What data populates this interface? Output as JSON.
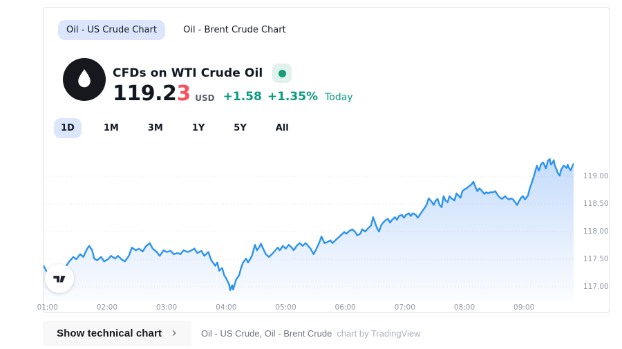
{
  "tabs": [
    {
      "label": "Oil - US Crude Chart",
      "active": true
    },
    {
      "label": "Oil - Brent Crude Chart",
      "active": false
    }
  ],
  "header": {
    "title": "CFDs on WTI Crude Oil",
    "market_status": "open",
    "price_main": "119.2",
    "price_last_digit": "3",
    "currency": "USD",
    "change_abs": "+1.58",
    "change_pct": "+1.35%",
    "change_period": "Today"
  },
  "ranges": [
    {
      "label": "1D",
      "active": true
    },
    {
      "label": "1M",
      "active": false
    },
    {
      "label": "3M",
      "active": false
    },
    {
      "label": "1Y",
      "active": false
    },
    {
      "label": "5Y",
      "active": false
    },
    {
      "label": "All",
      "active": false
    }
  ],
  "footer": {
    "button_label": "Show technical chart",
    "chevron": "›",
    "symbols_text": "Oil - US Crude, Oil - Brent Crude",
    "attribution": "chart by TradingView"
  },
  "colors": {
    "line": "#2b92ee",
    "fill_top": "rgba(45,127,240,0.30)",
    "fill_bottom": "rgba(45,127,240,0.02)",
    "grid": "#e4e6ee",
    "axis_text": "#9598a3",
    "up_green": "#089981",
    "last_digit_red": "#f7525f",
    "active_pill": "#dbe6fc",
    "card_border": "#e0e3eb",
    "status_dot": "#149d77",
    "status_badge_bg": "#e1f2ec",
    "dark_text": "#131722"
  },
  "chart_data": {
    "type": "area",
    "title": "CFDs on WTI Crude Oil",
    "xlabel": "",
    "ylabel": "",
    "x_unit": "minutes_since_midnight",
    "grid": "horizontal-dotted",
    "legend_position": "none",
    "x_range": [
      56,
      590
    ],
    "y_range": [
      116.75,
      119.5625
    ],
    "x_ticks": [
      {
        "t": 60,
        "label": "01:00"
      },
      {
        "t": 120,
        "label": "02:00"
      },
      {
        "t": 180,
        "label": "03:00"
      },
      {
        "t": 240,
        "label": "04:00"
      },
      {
        "t": 300,
        "label": "05:00"
      },
      {
        "t": 360,
        "label": "06:00"
      },
      {
        "t": 420,
        "label": "07:00"
      },
      {
        "t": 480,
        "label": "08:00"
      },
      {
        "t": 540,
        "label": "09:00"
      }
    ],
    "y_ticks": [
      {
        "p": 119.0,
        "label": "119.00"
      },
      {
        "p": 118.5,
        "label": "118.50"
      },
      {
        "p": 118.0,
        "label": "118.00"
      },
      {
        "p": 117.5,
        "label": "117.50"
      },
      {
        "p": 117.0,
        "label": "117.00"
      }
    ],
    "points": [
      [
        56,
        117.38
      ],
      [
        59,
        117.28
      ],
      [
        61,
        117.19
      ],
      [
        64,
        117.25
      ],
      [
        67,
        117.16
      ],
      [
        70,
        117.23
      ],
      [
        73,
        117.31
      ],
      [
        75,
        117.29
      ],
      [
        79,
        117.38
      ],
      [
        82,
        117.46
      ],
      [
        86,
        117.54
      ],
      [
        89,
        117.5
      ],
      [
        93,
        117.59
      ],
      [
        96,
        117.54
      ],
      [
        100,
        117.69
      ],
      [
        102,
        117.74
      ],
      [
        105,
        117.66
      ],
      [
        107,
        117.51
      ],
      [
        110,
        117.48
      ],
      [
        114,
        117.54
      ],
      [
        117,
        117.46
      ],
      [
        121,
        117.5
      ],
      [
        124,
        117.56
      ],
      [
        128,
        117.51
      ],
      [
        131,
        117.56
      ],
      [
        135,
        117.49
      ],
      [
        138,
        117.46
      ],
      [
        142,
        117.56
      ],
      [
        145,
        117.71
      ],
      [
        149,
        117.66
      ],
      [
        152,
        117.69
      ],
      [
        156,
        117.64
      ],
      [
        159,
        117.73
      ],
      [
        163,
        117.79
      ],
      [
        166,
        117.69
      ],
      [
        170,
        117.63
      ],
      [
        173,
        117.56
      ],
      [
        177,
        117.66
      ],
      [
        180,
        117.63
      ],
      [
        184,
        117.65
      ],
      [
        187,
        117.59
      ],
      [
        191,
        117.61
      ],
      [
        194,
        117.59
      ],
      [
        197,
        117.66
      ],
      [
        201,
        117.63
      ],
      [
        204,
        117.65
      ],
      [
        208,
        117.69
      ],
      [
        211,
        117.61
      ],
      [
        215,
        117.65
      ],
      [
        218,
        117.56
      ],
      [
        222,
        117.63
      ],
      [
        225,
        117.48
      ],
      [
        229,
        117.38
      ],
      [
        231,
        117.44
      ],
      [
        233,
        117.29
      ],
      [
        236,
        117.34
      ],
      [
        238,
        117.21
      ],
      [
        240,
        117.15
      ],
      [
        243,
        117.04
      ],
      [
        244,
        116.94
      ],
      [
        246,
        117.03
      ],
      [
        247,
        116.95
      ],
      [
        250,
        117.13
      ],
      [
        253,
        117.21
      ],
      [
        255,
        117.34
      ],
      [
        257,
        117.44
      ],
      [
        260,
        117.51
      ],
      [
        262,
        117.44
      ],
      [
        264,
        117.5
      ],
      [
        266,
        117.56
      ],
      [
        269,
        117.76
      ],
      [
        271,
        117.66
      ],
      [
        273,
        117.71
      ],
      [
        275,
        117.78
      ],
      [
        278,
        117.66
      ],
      [
        280,
        117.59
      ],
      [
        283,
        117.54
      ],
      [
        286,
        117.59
      ],
      [
        289,
        117.65
      ],
      [
        292,
        117.71
      ],
      [
        294,
        117.66
      ],
      [
        297,
        117.74
      ],
      [
        300,
        117.69
      ],
      [
        303,
        117.76
      ],
      [
        306,
        117.71
      ],
      [
        308,
        117.66
      ],
      [
        311,
        117.74
      ],
      [
        314,
        117.79
      ],
      [
        317,
        117.74
      ],
      [
        320,
        117.79
      ],
      [
        322,
        117.75
      ],
      [
        325,
        117.69
      ],
      [
        328,
        117.59
      ],
      [
        331,
        117.69
      ],
      [
        334,
        117.81
      ],
      [
        336,
        117.91
      ],
      [
        339,
        117.79
      ],
      [
        342,
        117.81
      ],
      [
        345,
        117.84
      ],
      [
        347,
        117.79
      ],
      [
        350,
        117.84
      ],
      [
        353,
        117.89
      ],
      [
        356,
        117.94
      ],
      [
        359,
        117.99
      ],
      [
        361,
        117.96
      ],
      [
        364,
        118.01
      ],
      [
        367,
        118.04
      ],
      [
        370,
        117.99
      ],
      [
        372,
        117.93
      ],
      [
        375,
        117.96
      ],
      [
        377,
        118.04
      ],
      [
        380,
        118.0
      ],
      [
        383,
        118.06
      ],
      [
        386,
        118.11
      ],
      [
        388,
        118.26
      ],
      [
        390,
        118.16
      ],
      [
        392,
        118.06
      ],
      [
        394,
        118.0
      ],
      [
        396,
        118.11
      ],
      [
        398,
        118.16
      ],
      [
        401,
        118.21
      ],
      [
        403,
        118.23
      ],
      [
        405,
        118.16
      ],
      [
        407,
        118.21
      ],
      [
        410,
        118.26
      ],
      [
        412,
        118.21
      ],
      [
        414,
        118.28
      ],
      [
        417,
        118.3
      ],
      [
        419,
        118.25
      ],
      [
        421,
        118.3
      ],
      [
        424,
        118.33
      ],
      [
        426,
        118.28
      ],
      [
        428,
        118.33
      ],
      [
        431,
        118.3
      ],
      [
        433,
        118.25
      ],
      [
        435,
        118.3
      ],
      [
        438,
        118.38
      ],
      [
        440,
        118.43
      ],
      [
        442,
        118.49
      ],
      [
        444,
        118.6
      ],
      [
        447,
        118.54
      ],
      [
        449,
        118.48
      ],
      [
        451,
        118.56
      ],
      [
        453,
        118.59
      ],
      [
        455,
        118.48
      ],
      [
        457,
        118.44
      ],
      [
        459,
        118.64
      ],
      [
        461,
        118.56
      ],
      [
        463,
        118.53
      ],
      [
        465,
        118.64
      ],
      [
        467,
        118.6
      ],
      [
        470,
        118.56
      ],
      [
        472,
        118.69
      ],
      [
        474,
        118.65
      ],
      [
        476,
        118.61
      ],
      [
        478,
        118.73
      ],
      [
        480,
        118.76
      ],
      [
        482,
        118.78
      ],
      [
        484,
        118.81
      ],
      [
        487,
        118.85
      ],
      [
        489,
        118.9
      ],
      [
        491,
        118.81
      ],
      [
        493,
        118.73
      ],
      [
        495,
        118.78
      ],
      [
        497,
        118.75
      ],
      [
        500,
        118.68
      ],
      [
        502,
        118.71
      ],
      [
        504,
        118.69
      ],
      [
        506,
        118.71
      ],
      [
        509,
        118.71
      ],
      [
        511,
        118.73
      ],
      [
        514,
        118.65
      ],
      [
        516,
        118.61
      ],
      [
        518,
        118.59
      ],
      [
        521,
        118.64
      ],
      [
        523,
        118.6
      ],
      [
        525,
        118.58
      ],
      [
        527,
        118.6
      ],
      [
        529,
        118.58
      ],
      [
        531,
        118.53
      ],
      [
        533,
        118.48
      ],
      [
        535,
        118.55
      ],
      [
        537,
        118.61
      ],
      [
        539,
        118.64
      ],
      [
        541,
        118.58
      ],
      [
        544,
        118.65
      ],
      [
        546,
        118.79
      ],
      [
        548,
        118.89
      ],
      [
        550,
        119.0
      ],
      [
        552,
        119.13
      ],
      [
        553,
        119.19
      ],
      [
        555,
        119.1
      ],
      [
        556,
        119.15
      ],
      [
        557,
        119.21
      ],
      [
        559,
        119.25
      ],
      [
        560,
        119.23
      ],
      [
        562,
        119.14
      ],
      [
        563,
        119.2
      ],
      [
        564,
        119.28
      ],
      [
        566,
        119.31
      ],
      [
        567,
        119.21
      ],
      [
        569,
        119.25
      ],
      [
        570,
        119.29
      ],
      [
        571,
        119.2
      ],
      [
        573,
        119.11
      ],
      [
        574,
        119.06
      ],
      [
        576,
        119.01
      ],
      [
        577,
        119.09
      ],
      [
        578,
        119.14
      ],
      [
        580,
        119.19
      ],
      [
        581,
        119.18
      ],
      [
        583,
        119.15
      ],
      [
        584,
        119.21
      ],
      [
        585,
        119.16
      ],
      [
        587,
        119.11
      ],
      [
        588,
        119.15
      ],
      [
        590,
        119.23
      ]
    ]
  }
}
